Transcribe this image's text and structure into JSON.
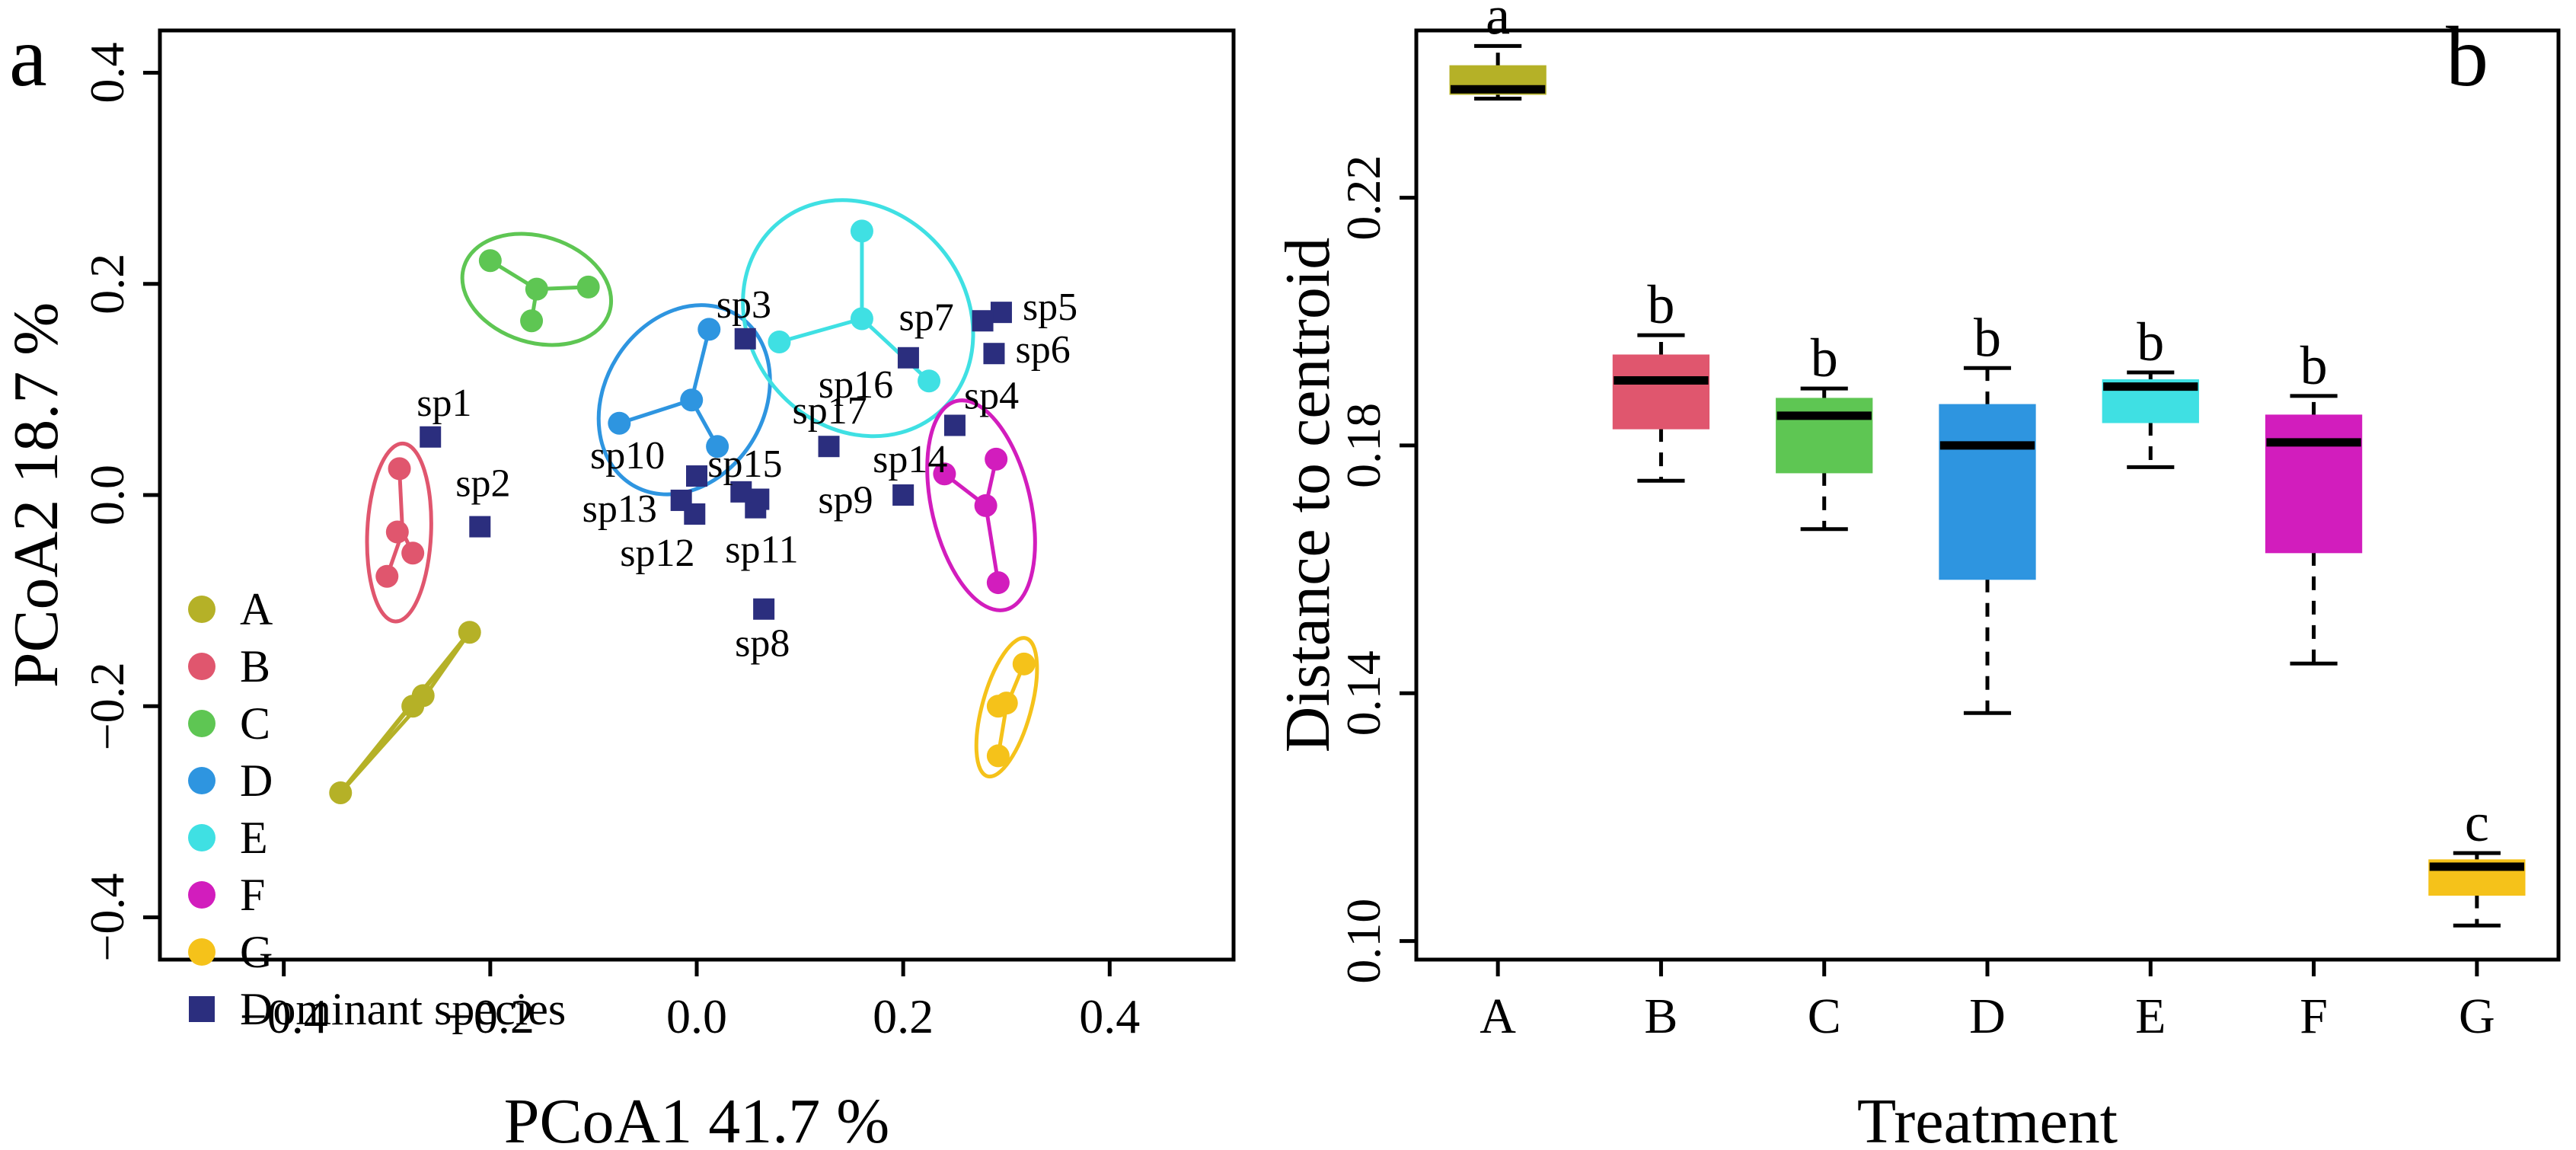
{
  "chart_data": [
    {
      "panel": "a",
      "type": "scatter",
      "xlabel": "PCoA1  41.7 %",
      "ylabel": "PCoA2  18.7 %",
      "xlim": [
        -0.52,
        0.52
      ],
      "ylim": [
        -0.44,
        0.44
      ],
      "xticks": [
        -0.4,
        -0.2,
        0.0,
        0.2,
        0.4
      ],
      "yticks": [
        -0.4,
        -0.2,
        0.0,
        0.2,
        0.4
      ],
      "xtick_labels": [
        "−0.4",
        "−0.2",
        "0.0",
        "0.2",
        "0.4"
      ],
      "ytick_labels": [
        "−0.4",
        "−0.2",
        "0.0",
        "0.2",
        "0.4"
      ],
      "legend_position": "bottom-left",
      "groups": [
        {
          "name": "A",
          "color": "#b5b127",
          "hull": "line",
          "centroid": [
            -0.27,
            -0.2
          ],
          "points": [
            [
              -0.22,
              -0.13
            ],
            [
              -0.265,
              -0.19
            ],
            [
              -0.275,
              -0.2
            ],
            [
              -0.345,
              -0.282
            ]
          ]
        },
        {
          "name": "B",
          "color": "#e0566e",
          "hull": "ellipse",
          "centroid": [
            -0.285,
            -0.035
          ],
          "points": [
            [
              -0.288,
              0.025
            ],
            [
              -0.29,
              -0.035
            ],
            [
              -0.275,
              -0.055
            ],
            [
              -0.3,
              -0.077
            ]
          ]
        },
        {
          "name": "C",
          "color": "#5ec653",
          "hull": "ellipse",
          "centroid": [
            -0.155,
            0.195
          ],
          "points": [
            [
              -0.2,
              0.222
            ],
            [
              -0.155,
              0.195
            ],
            [
              -0.105,
              0.197
            ],
            [
              -0.16,
              0.165
            ]
          ]
        },
        {
          "name": "D",
          "color": "#2e95e0",
          "hull": "ellipse",
          "centroid": [
            -0.005,
            0.09
          ],
          "points": [
            [
              0.012,
              0.157
            ],
            [
              -0.075,
              0.068
            ],
            [
              -0.005,
              0.09
            ],
            [
              0.02,
              0.046
            ]
          ]
        },
        {
          "name": "E",
          "color": "#3fe0e3",
          "hull": "ellipse",
          "centroid": [
            0.16,
            0.167
          ],
          "points": [
            [
              0.16,
              0.25
            ],
            [
              0.08,
              0.145
            ],
            [
              0.16,
              0.167
            ],
            [
              0.225,
              0.108
            ]
          ]
        },
        {
          "name": "F",
          "color": "#d21dbd",
          "hull": "ellipse",
          "centroid": [
            0.28,
            -0.01
          ],
          "points": [
            [
              0.24,
              0.02
            ],
            [
              0.29,
              0.034
            ],
            [
              0.28,
              -0.01
            ],
            [
              0.292,
              -0.083
            ]
          ]
        },
        {
          "name": "G",
          "color": "#f5c21a",
          "hull": "ellipse",
          "centroid": [
            0.3,
            -0.2
          ],
          "points": [
            [
              0.317,
              -0.16
            ],
            [
              0.3,
              -0.197
            ],
            [
              0.292,
              -0.2
            ],
            [
              0.292,
              -0.247
            ]
          ]
        }
      ],
      "species_color": "#2b2e7e",
      "species": [
        {
          "name": "sp1",
          "x": -0.258,
          "y": 0.055
        },
        {
          "name": "sp2",
          "x": -0.21,
          "y": -0.03
        },
        {
          "name": "sp3",
          "x": 0.047,
          "y": 0.148
        },
        {
          "name": "sp4",
          "x": 0.25,
          "y": 0.066
        },
        {
          "name": "sp5",
          "x": 0.295,
          "y": 0.173
        },
        {
          "name": "sp6",
          "x": 0.288,
          "y": 0.134
        },
        {
          "name": "sp7",
          "x": 0.277,
          "y": 0.165
        },
        {
          "name": "sp8",
          "x": 0.065,
          "y": -0.108
        },
        {
          "name": "sp9",
          "x": 0.06,
          "y": -0.004
        },
        {
          "name": "sp10",
          "x": 0.0,
          "y": 0.018
        },
        {
          "name": "sp11",
          "x": 0.057,
          "y": -0.012
        },
        {
          "name": "sp12",
          "x": -0.002,
          "y": -0.018
        },
        {
          "name": "sp13",
          "x": -0.015,
          "y": -0.005
        },
        {
          "name": "sp14",
          "x": 0.2,
          "y": 0.0
        },
        {
          "name": "sp15",
          "x": 0.043,
          "y": 0.003
        },
        {
          "name": "sp16",
          "x": 0.205,
          "y": 0.13
        },
        {
          "name": "sp17",
          "x": 0.128,
          "y": 0.046
        }
      ],
      "legend": [
        "A",
        "B",
        "C",
        "D",
        "E",
        "F",
        "G",
        "Dominant species"
      ]
    },
    {
      "panel": "b",
      "type": "box",
      "xlabel": "Treatment",
      "ylabel": "Distance to centroid",
      "ylim": [
        0.097,
        0.247
      ],
      "yticks": [
        0.1,
        0.14,
        0.18,
        0.22
      ],
      "ytick_labels": [
        "0.10",
        "0.14",
        "0.18",
        "0.22"
      ],
      "categories": [
        "A",
        "B",
        "C",
        "D",
        "E",
        "F",
        "G"
      ],
      "boxes": [
        {
          "name": "A",
          "color": "#b5b127",
          "min": 0.236,
          "q1": 0.2368,
          "median": 0.2375,
          "q3": 0.2412,
          "max": 0.2445,
          "letter": "a"
        },
        {
          "name": "B",
          "color": "#e0566e",
          "min": 0.1743,
          "q1": 0.1828,
          "median": 0.1905,
          "q3": 0.1945,
          "max": 0.1978,
          "letter": "b"
        },
        {
          "name": "C",
          "color": "#5ec653",
          "min": 0.1665,
          "q1": 0.1757,
          "median": 0.1848,
          "q3": 0.1875,
          "max": 0.1892,
          "letter": "b"
        },
        {
          "name": "D",
          "color": "#2e95e0",
          "min": 0.1368,
          "q1": 0.1585,
          "median": 0.18,
          "q3": 0.1865,
          "max": 0.1925,
          "letter": "b"
        },
        {
          "name": "E",
          "color": "#3fe0e3",
          "min": 0.1765,
          "q1": 0.1838,
          "median": 0.1895,
          "q3": 0.1905,
          "max": 0.1918,
          "letter": "b"
        },
        {
          "name": "F",
          "color": "#d21dbd",
          "min": 0.1448,
          "q1": 0.1628,
          "median": 0.1805,
          "q3": 0.1848,
          "max": 0.188,
          "letter": "b"
        },
        {
          "name": "G",
          "color": "#f5c21a",
          "min": 0.1025,
          "q1": 0.1075,
          "median": 0.112,
          "q3": 0.113,
          "max": 0.1142,
          "letter": "c"
        }
      ]
    }
  ]
}
